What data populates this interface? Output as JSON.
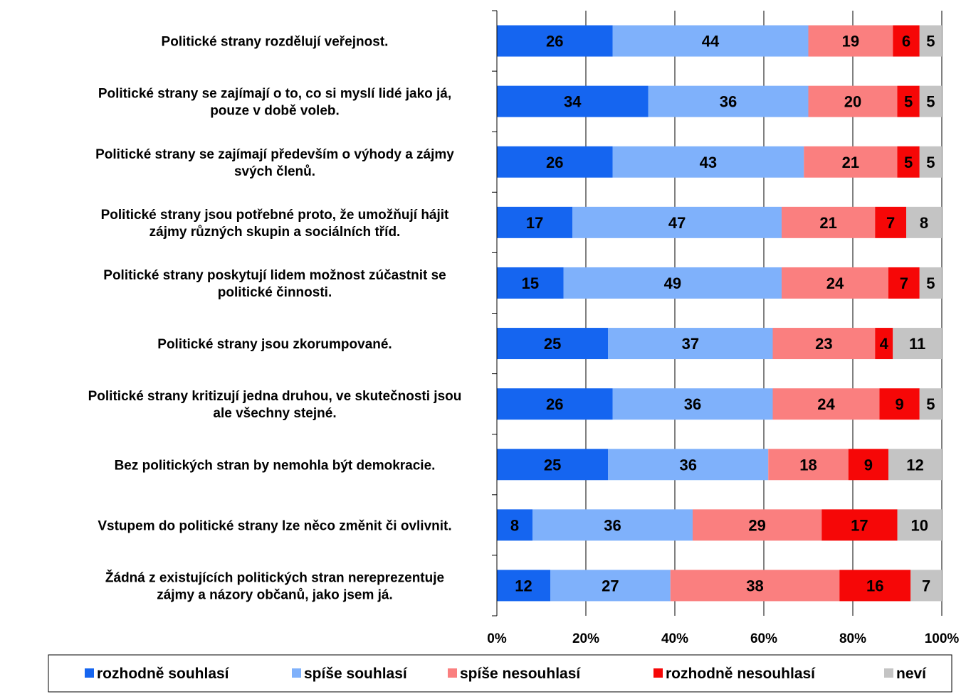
{
  "chart_data": {
    "type": "bar",
    "orientation": "horizontal",
    "stacked": "percent",
    "categories": [
      [
        "Politické strany rozdělují veřejnost."
      ],
      [
        "Politické strany se zajímají o to, co si myslí lidé jako já,",
        "pouze v době voleb."
      ],
      [
        "Politické strany se zajímají především o výhody a zájmy",
        "svých členů."
      ],
      [
        "Politické strany jsou potřebné proto, že umožňují hájit",
        "zájmy různých skupin a sociálních tříd."
      ],
      [
        "Politické strany poskytují lidem možnost zúčastnit se",
        "politické činnosti."
      ],
      [
        "Politické strany jsou zkorumpované."
      ],
      [
        "Politické strany kritizují jedna druhou, ve skutečnosti jsou",
        "ale všechny stejné."
      ],
      [
        "Bez politických stran by nemohla být demokracie."
      ],
      [
        "Vstupem do politické strany lze něco změnit či ovlivnit."
      ],
      [
        "Žádná z existujících politických stran nereprezentuje",
        "zájmy a názory občanů, jako jsem já."
      ]
    ],
    "series": [
      {
        "name": "rozhodně souhlasí",
        "color": "#1565f0",
        "values": [
          26,
          34,
          26,
          17,
          15,
          25,
          26,
          25,
          8,
          12
        ]
      },
      {
        "name": "spíše souhlasí",
        "color": "#7fb1fb",
        "values": [
          44,
          36,
          43,
          47,
          49,
          37,
          36,
          36,
          36,
          27
        ]
      },
      {
        "name": "spíše nesouhlasí",
        "color": "#fa7f7f",
        "values": [
          19,
          20,
          21,
          21,
          24,
          23,
          24,
          18,
          29,
          38
        ]
      },
      {
        "name": "rozhodně nesouhlasí",
        "color": "#f60707",
        "values": [
          6,
          5,
          5,
          7,
          7,
          4,
          9,
          9,
          17,
          16
        ]
      },
      {
        "name": "neví",
        "color": "#c4c4c4",
        "values": [
          5,
          5,
          5,
          8,
          5,
          11,
          5,
          12,
          10,
          7
        ]
      }
    ],
    "x_ticks": [
      "0%",
      "20%",
      "40%",
      "60%",
      "80%",
      "100%"
    ],
    "xlim": [
      0,
      100
    ],
    "grid": "vertical",
    "legend": "bottom"
  }
}
